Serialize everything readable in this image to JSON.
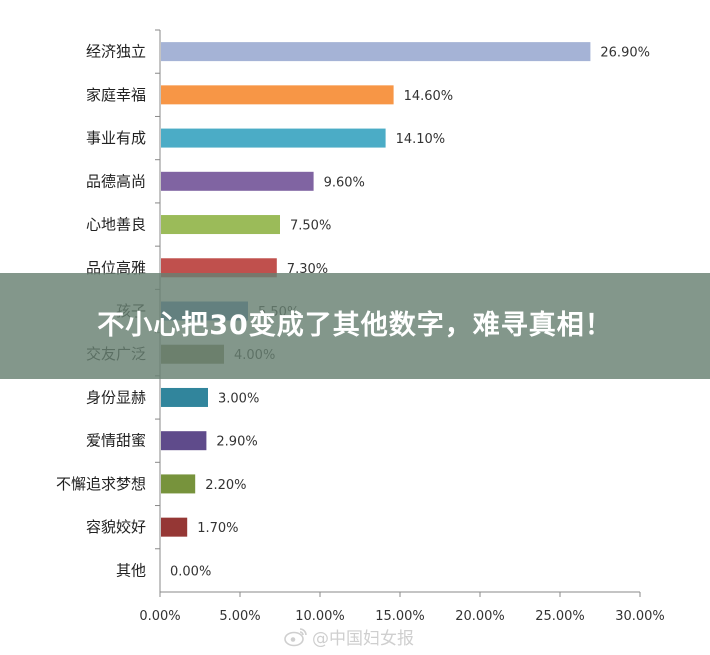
{
  "chart_data": {
    "type": "bar",
    "orientation": "horizontal",
    "categories": [
      "经济独立",
      "家庭幸福",
      "事业有成",
      "品德高尚",
      "心地善良",
      "品位高雅",
      "孩子",
      "交友广泛",
      "身份显赫",
      "爱情甜蜜",
      "不懈追求梦想",
      "容貌姣好",
      "其他"
    ],
    "values": [
      26.9,
      14.6,
      14.1,
      9.6,
      7.5,
      7.3,
      5.5,
      4.0,
      3.0,
      2.9,
      2.2,
      1.7,
      0.0
    ],
    "value_labels": [
      "26.90%",
      "14.60%",
      "14.10%",
      "9.60%",
      "7.50%",
      "7.30%",
      "5.50%",
      "4.00%",
      "3.00%",
      "2.90%",
      "2.20%",
      "1.70%",
      "0.00%"
    ],
    "colors": [
      "#a5b3d6",
      "#f79646",
      "#4bacc6",
      "#8064a2",
      "#9bbb59",
      "#c0504d",
      "#4f81bd",
      "#7f7f5a",
      "#31859c",
      "#5f4b8b",
      "#77933c",
      "#953735",
      "#4f81bd"
    ],
    "xlim": [
      0,
      30
    ],
    "xticks": [
      "0.00%",
      "5.00%",
      "10.00%",
      "15.00%",
      "20.00%",
      "25.00%",
      "30.00%"
    ],
    "grid": false
  },
  "banner": {
    "text": "不小心把30变成了其他数字，难寻真相！"
  },
  "watermark": {
    "text": "@中国妇女报",
    "icon": "weibo-icon"
  }
}
